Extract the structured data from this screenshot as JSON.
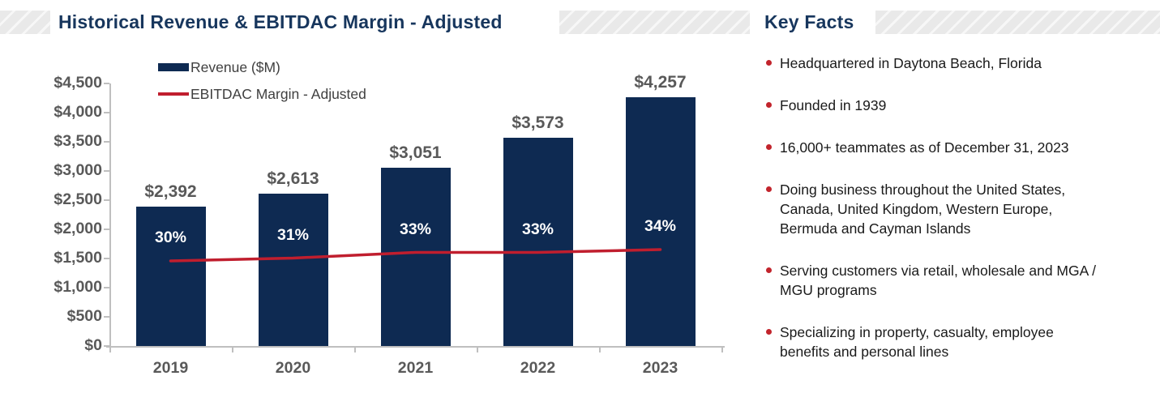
{
  "header": {
    "chart_title": "Historical Revenue & EBITDAC Margin - Adjusted",
    "key_facts_title": "Key Facts"
  },
  "chart_data": {
    "type": "bar",
    "title": "Historical Revenue & EBITDAC Margin - Adjusted",
    "categories": [
      "2019",
      "2020",
      "2021",
      "2022",
      "2023"
    ],
    "series": [
      {
        "name": "Revenue ($M)",
        "type": "bar",
        "values": [
          2392,
          2613,
          3051,
          3573,
          4257
        ],
        "labels": [
          "$2,392",
          "$2,613",
          "$3,051",
          "$3,573",
          "$4,257"
        ],
        "color": "#0e2a52"
      },
      {
        "name": "EBITDAC Margin - Adjusted",
        "type": "line",
        "values": [
          30,
          31,
          33,
          33,
          34
        ],
        "labels": [
          "30%",
          "31%",
          "33%",
          "33%",
          "34%"
        ],
        "color": "#c01e2e"
      }
    ],
    "y_axis": {
      "min": 0,
      "max": 4500,
      "step": 500,
      "tick_labels": [
        "$0",
        "$500",
        "$1,000",
        "$1,500",
        "$2,000",
        "$2,500",
        "$3,000",
        "$3,500",
        "$4,000",
        "$4,500"
      ]
    },
    "legend_position": "top-left",
    "grid": false
  },
  "key_facts": {
    "bullets": [
      "Headquartered in Daytona Beach, Florida",
      "Founded in 1939",
      "16,000+ teammates as of December 31, 2023",
      "Doing business throughout the United States, Canada, United Kingdom, Western Europe, Bermuda and Cayman Islands",
      "Serving customers via retail, wholesale and MGA / MGU programs",
      "Specializing in property, casualty, employee benefits and personal lines"
    ]
  },
  "colors": {
    "bar_navy": "#0e2a52",
    "title_navy": "#17365d",
    "line_red": "#c01e2e",
    "bullet_red": "#c2242c",
    "axis_gray": "#bfbfbf",
    "label_gray": "#595959"
  }
}
